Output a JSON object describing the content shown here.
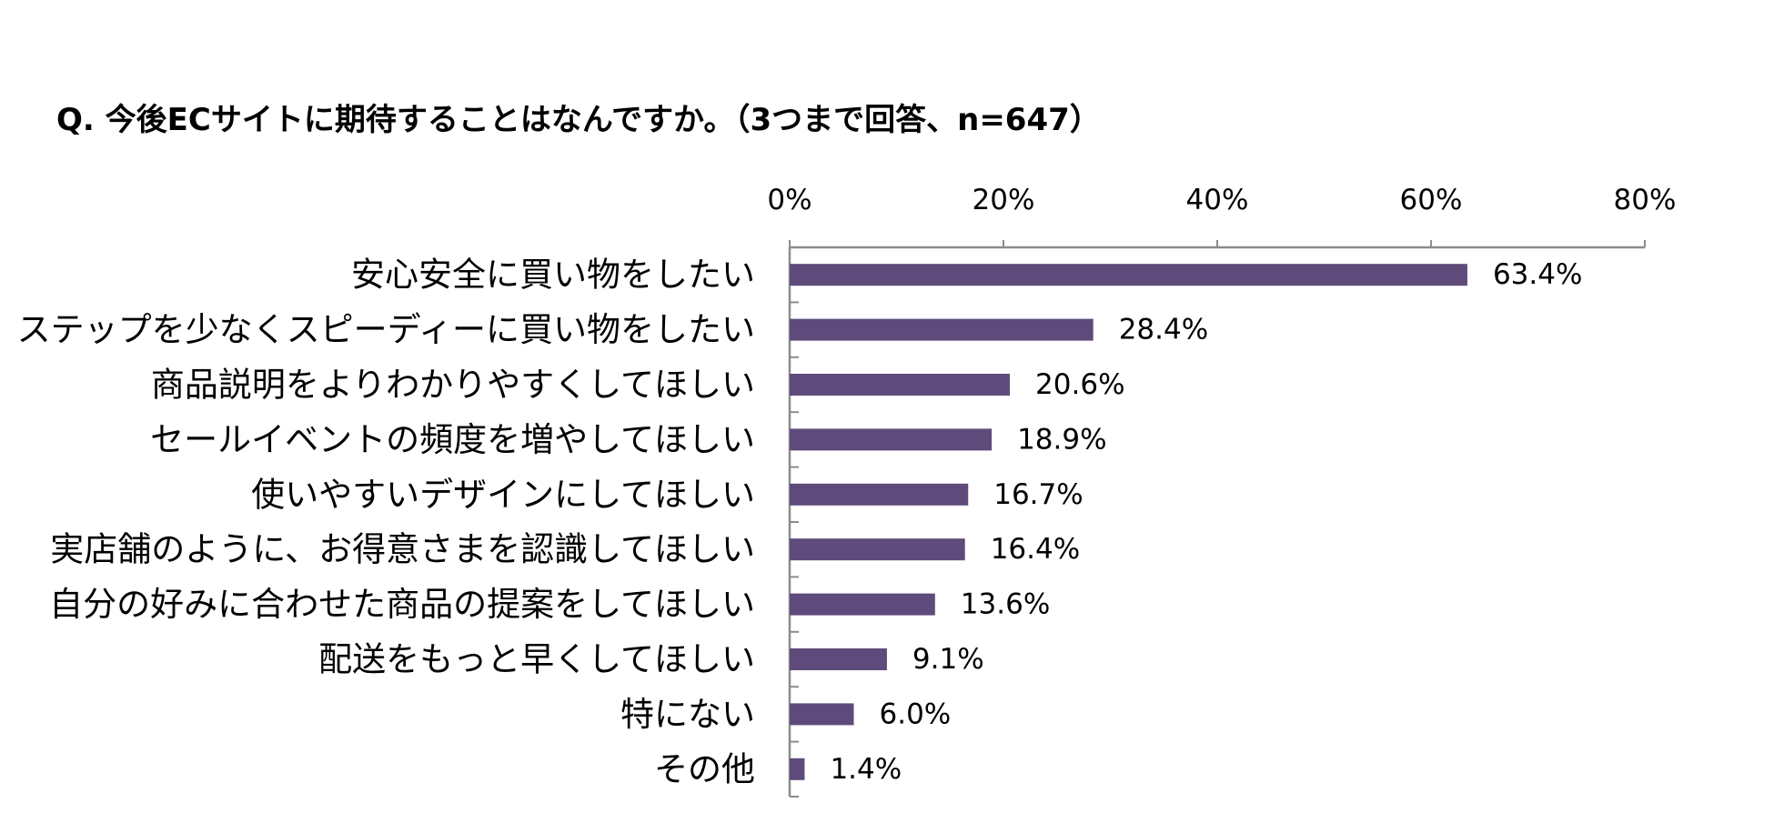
{
  "chart_data": {
    "type": "bar",
    "orientation": "horizontal",
    "title": "Q. 今後ECサイトに期待することはなんですか。（3つまで回答、n=647）",
    "categories": [
      "安心安全に買い物をしたい",
      "ステップを少なくスピーディーに買い物をしたい",
      "商品説明をよりわかりやすくしてほしい",
      "セールイベントの頻度を増やしてほしい",
      "使いやすいデザインにしてほしい",
      "実店舗のように、お得意さまを認識してほしい",
      "自分の好みに合わせた商品の提案をしてほしい",
      "配送をもっと早くしてほしい",
      "特にない",
      "その他"
    ],
    "values": [
      63.4,
      28.4,
      20.6,
      18.9,
      16.7,
      16.4,
      13.6,
      9.1,
      6.0,
      1.4
    ],
    "data_labels": [
      "63.4%",
      "28.4%",
      "20.6%",
      "18.9%",
      "16.7%",
      "16.4%",
      "13.6%",
      "9.1%",
      "6.0%",
      "1.4%"
    ],
    "xlim": [
      0,
      80
    ],
    "x_ticks": [
      0,
      20,
      40,
      60,
      80
    ],
    "x_tick_labels": [
      "0%",
      "20%",
      "40%",
      "60%",
      "80%"
    ],
    "x_axis_position": "top",
    "grid": false,
    "legend": "none",
    "bar_color": "#5f4b7b",
    "axis_color": "#8c8c8c"
  }
}
